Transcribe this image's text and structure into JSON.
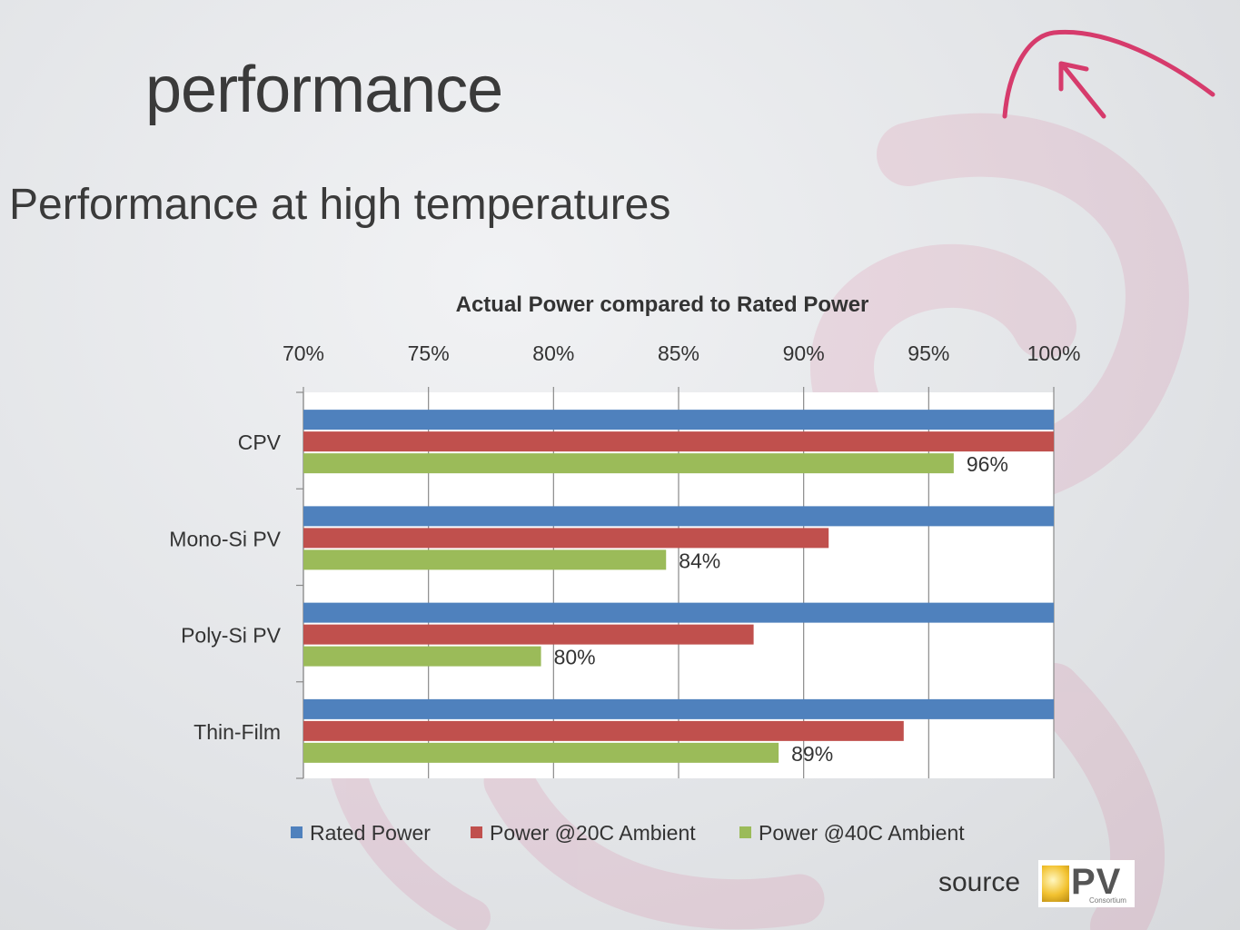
{
  "slide": {
    "title": "performance",
    "subtitle": "Performance at high temperatures",
    "source_label": "source",
    "source_logo": "CPV Consortium logo"
  },
  "colors": {
    "rated": "#4f81bd",
    "ambient20": "#c0504d",
    "ambient40": "#9bbb59",
    "accent_swirl": "#cc3366"
  },
  "chart_data": {
    "type": "bar",
    "orientation": "horizontal",
    "title": "Actual Power compared to Rated Power",
    "categories": [
      "CPV",
      "Mono-Si PV",
      "Poly-Si PV",
      "Thin-Film"
    ],
    "xlim": [
      0.7,
      1.0
    ],
    "ticks": [
      "70%",
      "75%",
      "80%",
      "85%",
      "90%",
      "95%",
      "100%"
    ],
    "tick_values": [
      0.7,
      0.75,
      0.8,
      0.85,
      0.9,
      0.95,
      1.0
    ],
    "x_axis_position": "top",
    "grid": "vertical",
    "legend_position": "bottom",
    "series": [
      {
        "name": "Rated Power",
        "values": [
          1.0,
          1.0,
          1.0,
          1.0
        ],
        "color": "#4f81bd"
      },
      {
        "name": "Power @20C Ambient",
        "values": [
          1.0,
          0.91,
          0.88,
          0.94
        ],
        "color": "#c0504d"
      },
      {
        "name": "Power @40C Ambient",
        "values": [
          0.96,
          0.845,
          0.795,
          0.89
        ],
        "color": "#9bbb59"
      }
    ],
    "data_labels": {
      "series": "Power @40C Ambient",
      "labels": [
        "96%",
        "84%",
        "80%",
        "89%"
      ]
    }
  }
}
